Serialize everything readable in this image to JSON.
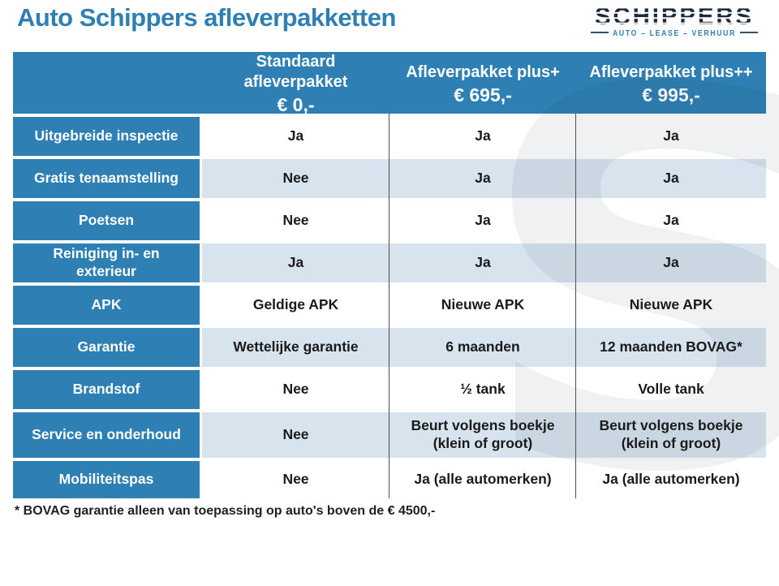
{
  "page": {
    "title": "Auto Schippers afleverpakketten",
    "footnote": "* BOVAG garantie alleen van toepassing op auto's boven de € 4500,-"
  },
  "logo": {
    "name": "SCHIPPERS",
    "tagline": "AUTO – LEASE – VERHUUR",
    "watermark_glyph": "S"
  },
  "colors": {
    "accent_blue": "#2e80b4",
    "title_blue": "#2e7fb3",
    "row_alt_blue": "#d7e4ee",
    "text_dark": "#1a1a1a",
    "logo_navy": "#1d2a3a",
    "column_separator": "#4d4d4d"
  },
  "table": {
    "columns": [
      {
        "name": "Standaard afleverpakket",
        "price": "€ 0,-"
      },
      {
        "name": "Afleverpakket plus+",
        "price": "€ 695,-"
      },
      {
        "name": "Afleverpakket plus++",
        "price": "€ 995,-"
      }
    ],
    "rows": [
      {
        "label": "Uitgebreide inspectie",
        "values": [
          "Ja",
          "Ja",
          "Ja"
        ]
      },
      {
        "label": "Gratis tenaamstelling",
        "values": [
          "Nee",
          "Ja",
          "Ja"
        ]
      },
      {
        "label": "Poetsen",
        "values": [
          "Nee",
          "Ja",
          "Ja"
        ]
      },
      {
        "label": "Reiniging in- en exterieur",
        "values": [
          "Ja",
          "Ja",
          "Ja"
        ]
      },
      {
        "label": "APK",
        "values": [
          "Geldige APK",
          "Nieuwe APK",
          "Nieuwe APK"
        ]
      },
      {
        "label": "Garantie",
        "values": [
          "Wettelijke garantie",
          "6 maanden",
          "12 maanden BOVAG*"
        ]
      },
      {
        "label": "Brandstof",
        "values": [
          "Nee",
          "½ tank",
          "Volle tank"
        ]
      },
      {
        "label": "Service en onderhoud",
        "values": [
          "Nee",
          "Beurt volgens boekje (klein of groot)",
          "Beurt volgens boekje (klein of groot)"
        ]
      },
      {
        "label": "Mobiliteitspas",
        "values": [
          "Nee",
          "Ja (alle automerken)",
          "Ja (alle automerken)"
        ]
      }
    ]
  }
}
